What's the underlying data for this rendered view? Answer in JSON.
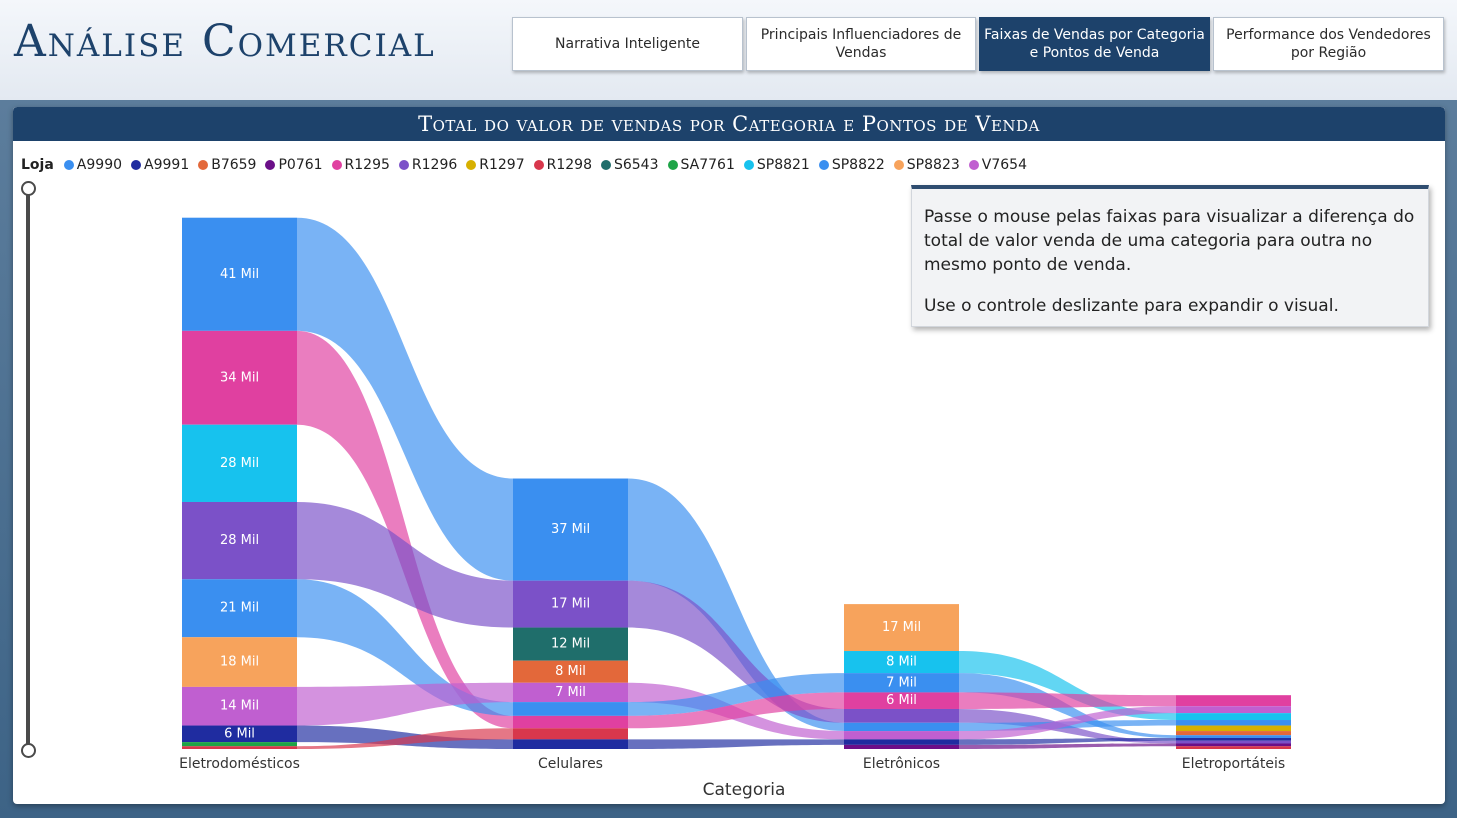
{
  "app": {
    "title": "Análise Comercial"
  },
  "nav": {
    "tabs": [
      {
        "label": "Narrativa Inteligente",
        "active": false
      },
      {
        "label": "Principais Influenciadores de Vendas",
        "active": false
      },
      {
        "label": "Faixas de Vendas por Categoria e Pontos de Venda",
        "active": true
      },
      {
        "label": "Performance dos Vendedores por Região",
        "active": false
      }
    ]
  },
  "panel": {
    "title": "Total do valor de vendas por Categoria e Pontos de Venda",
    "legend_title": "Loja",
    "stores": [
      {
        "name": "A9990",
        "color": "#3a8ff0"
      },
      {
        "name": "A9991",
        "color": "#1f2ca0"
      },
      {
        "name": "B7659",
        "color": "#e3683a"
      },
      {
        "name": "P0761",
        "color": "#6b0f88"
      },
      {
        "name": "R1295",
        "color": "#e040a0"
      },
      {
        "name": "R1296",
        "color": "#7b51c8"
      },
      {
        "name": "R1297",
        "color": "#d7b000"
      },
      {
        "name": "R1298",
        "color": "#d8374c"
      },
      {
        "name": "S6543",
        "color": "#1f6e6b"
      },
      {
        "name": "SA7761",
        "color": "#1ea447"
      },
      {
        "name": "SP8821",
        "color": "#17c2ee"
      },
      {
        "name": "SP8822",
        "color": "#3a8ff0"
      },
      {
        "name": "SP8823",
        "color": "#f7a35c"
      },
      {
        "name": "V7654",
        "color": "#c05fd0"
      }
    ],
    "info_text": [
      "Passe o mouse pelas faixas para visualizar a diferença do total de valor venda de uma categoria para outra no mesmo ponto de venda.",
      "Use o controle deslizante para expandir o visual."
    ],
    "slider_icon": "vertical-range-slider"
  },
  "chart_data": {
    "type": "ribbon",
    "x_title": "Categoria",
    "categories": [
      "Eletrodomésticos",
      "Celulares",
      "Eletrônicos",
      "Eletroportáteis"
    ],
    "unit": "Mil",
    "columns": [
      {
        "category": "Eletrodomésticos",
        "segments": [
          {
            "store": "SP8822",
            "value": 41,
            "label": "41 Mil"
          },
          {
            "store": "R1295",
            "value": 34,
            "label": "34 Mil"
          },
          {
            "store": "SP8821",
            "value": 28,
            "label": "28 Mil"
          },
          {
            "store": "R1296",
            "value": 28,
            "label": "28 Mil"
          },
          {
            "store": "A9990",
            "value": 21,
            "label": "21 Mil"
          },
          {
            "store": "SP8823",
            "value": 18,
            "label": "18 Mil"
          },
          {
            "store": "V7654",
            "value": 14,
            "label": "14 Mil"
          },
          {
            "store": "A9991",
            "value": 6,
            "label": "6 Mil"
          },
          {
            "store": "SA7761",
            "value": 1.5,
            "label": ""
          },
          {
            "store": "R1298",
            "value": 1,
            "label": ""
          }
        ]
      },
      {
        "category": "Celulares",
        "segments": [
          {
            "store": "SP8822",
            "value": 37,
            "label": "37 Mil"
          },
          {
            "store": "R1296",
            "value": 17,
            "label": "17 Mil"
          },
          {
            "store": "S6543",
            "value": 12,
            "label": "12 Mil"
          },
          {
            "store": "B7659",
            "value": 8,
            "label": "8 Mil"
          },
          {
            "store": "V7654",
            "value": 7,
            "label": "7 Mil"
          },
          {
            "store": "A9990",
            "value": 5,
            "label": ""
          },
          {
            "store": "R1295",
            "value": 4.5,
            "label": ""
          },
          {
            "store": "R1298",
            "value": 4,
            "label": ""
          },
          {
            "store": "A9991",
            "value": 3.5,
            "label": ""
          }
        ]
      },
      {
        "category": "Eletrônicos",
        "segments": [
          {
            "store": "SP8823",
            "value": 17,
            "label": "17 Mil"
          },
          {
            "store": "SP8821",
            "value": 8,
            "label": "8 Mil"
          },
          {
            "store": "A9990",
            "value": 7,
            "label": "7 Mil"
          },
          {
            "store": "R1295",
            "value": 6,
            "label": "6 Mil"
          },
          {
            "store": "R1296",
            "value": 5,
            "label": ""
          },
          {
            "store": "SP8822",
            "value": 3,
            "label": ""
          },
          {
            "store": "V7654",
            "value": 3,
            "label": ""
          },
          {
            "store": "A9991",
            "value": 2,
            "label": ""
          },
          {
            "store": "P0761",
            "value": 1.5,
            "label": ""
          }
        ]
      },
      {
        "category": "Eletroportáteis",
        "segments": [
          {
            "store": "R1295",
            "value": 4,
            "label": ""
          },
          {
            "store": "V7654",
            "value": 2.5,
            "label": ""
          },
          {
            "store": "SP8821",
            "value": 2.5,
            "label": ""
          },
          {
            "store": "SP8822",
            "value": 2,
            "label": ""
          },
          {
            "store": "R1297",
            "value": 2,
            "label": ""
          },
          {
            "store": "B7659",
            "value": 1.5,
            "label": ""
          },
          {
            "store": "A9990",
            "value": 1,
            "label": ""
          },
          {
            "store": "A9991",
            "value": 1,
            "label": ""
          },
          {
            "store": "R1296",
            "value": 1,
            "label": ""
          },
          {
            "store": "P0761",
            "value": 1,
            "label": ""
          },
          {
            "store": "R1298",
            "value": 1,
            "label": ""
          }
        ]
      }
    ]
  }
}
